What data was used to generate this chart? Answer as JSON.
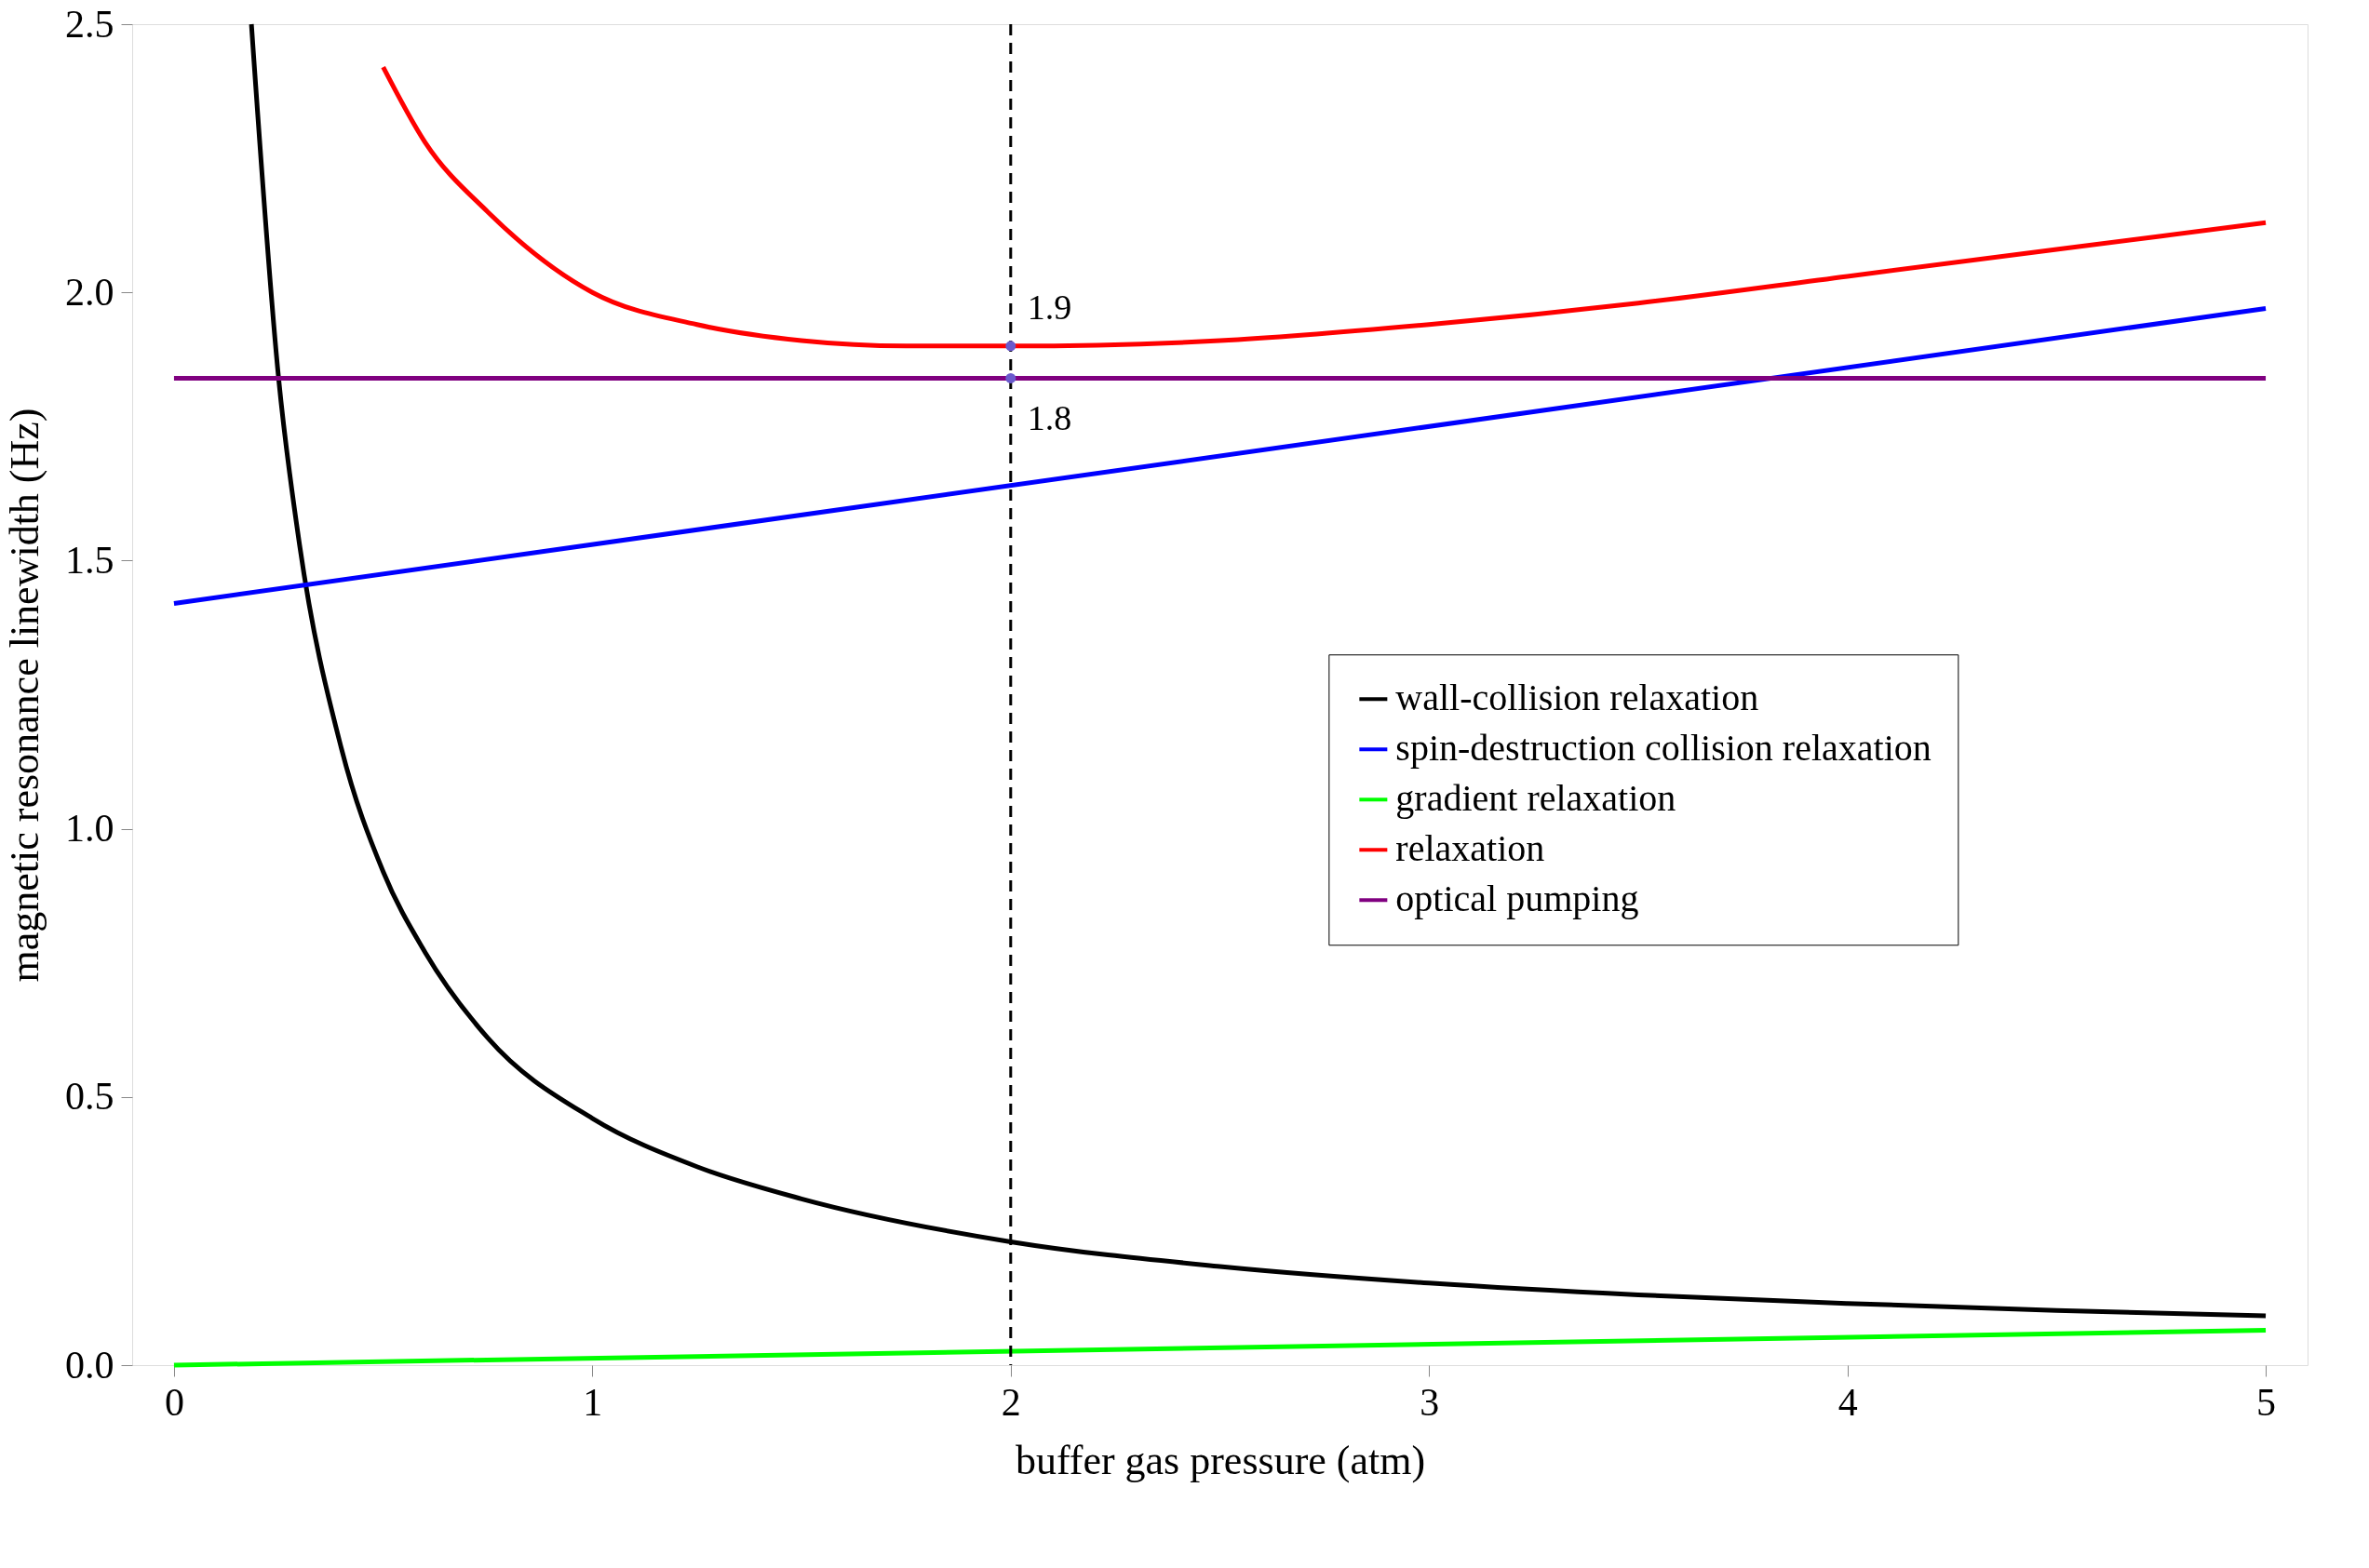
{
  "chart_data": {
    "type": "line",
    "xlabel": "buffer gas pressure (atm)",
    "ylabel": "magnetic resonance linewidth (Hz)",
    "xlim": [
      -0.1,
      5.1
    ],
    "ylim": [
      0,
      2.5
    ],
    "xticks": [
      0,
      1,
      2,
      3,
      4,
      5
    ],
    "yticks": [
      {
        "value": 0,
        "label": "0.0"
      },
      {
        "value": 0.5,
        "label": "0.5"
      },
      {
        "value": 1,
        "label": "1.0"
      },
      {
        "value": 1.5,
        "label": "1.5"
      },
      {
        "value": 2,
        "label": "2.0"
      },
      {
        "value": 2.5,
        "label": "2.5"
      }
    ],
    "grid": false,
    "legend": "right",
    "marker": "none",
    "line_style": "solid",
    "series": [
      {
        "name": "wall-collision relaxation",
        "color": "#000000",
        "x": [
          0.185,
          0.25,
          0.3,
          0.4,
          0.5,
          0.6,
          0.75,
          1,
          1.25,
          1.5,
          2,
          2.5,
          3,
          3.5,
          4,
          4.5,
          5
        ],
        "values": [
          2.5,
          1.84,
          1.53,
          1.15,
          0.92,
          0.77,
          0.61,
          0.46,
          0.37,
          0.31,
          0.23,
          0.184,
          0.153,
          0.131,
          0.115,
          0.102,
          0.092
        ]
      },
      {
        "name": "spin-destruction collision relaxation",
        "color": "#0000ff",
        "x": [
          0,
          5
        ],
        "values": [
          1.42,
          1.97
        ]
      },
      {
        "name": "gradient relaxation",
        "color": "#00ff00",
        "x": [
          0,
          5
        ],
        "values": [
          0.0,
          0.065
        ]
      },
      {
        "name": "relaxation",
        "color": "#ff0000",
        "x": [
          0.5,
          0.6,
          0.75,
          1,
          1.25,
          1.5,
          1.75,
          2,
          2.5,
          3,
          3.5,
          4,
          4.5,
          5
        ],
        "values": [
          2.42,
          2.28,
          2.15,
          2.0,
          1.94,
          1.91,
          1.9,
          1.9,
          1.91,
          1.94,
          1.98,
          2.03,
          2.08,
          2.13
        ]
      },
      {
        "name": "optical pumping",
        "color": "#800080",
        "x": [
          0,
          5
        ],
        "values": [
          1.84,
          1.84
        ]
      }
    ],
    "ref_lines": [
      {
        "axis": "x",
        "value": 2,
        "label": null,
        "color": "#000000",
        "line_style": "dashed"
      }
    ],
    "annotations": [
      {
        "text": "1.9",
        "x": 2,
        "y": 1.9
      },
      {
        "text": "1.8",
        "x": 2,
        "y": 1.84
      }
    ]
  }
}
